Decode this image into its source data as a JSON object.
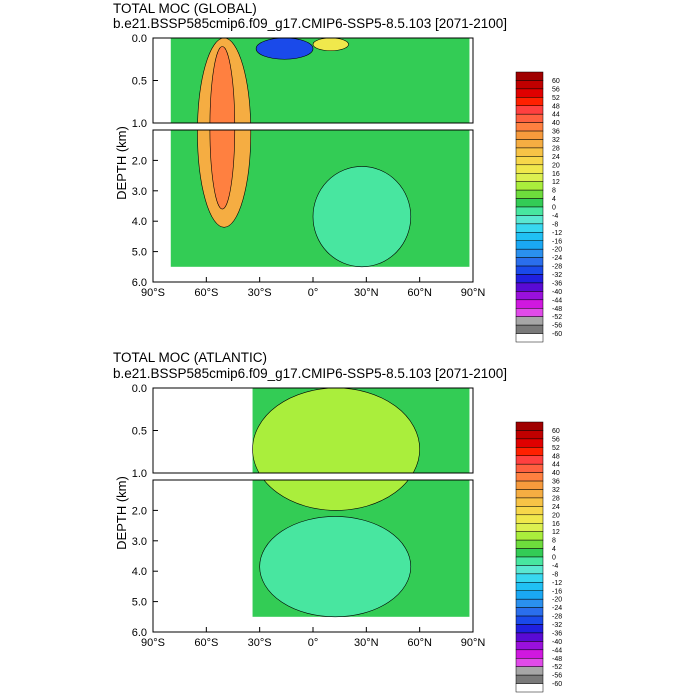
{
  "panels": [
    {
      "title": "TOTAL MOC (GLOBAL)",
      "subtitle": "b.e21.BSSP585cmip6.f09_g17.CMIP6-SSP5-8.5.103 [2071-2100]"
    },
    {
      "title": "TOTAL MOC (ATLANTIC)",
      "subtitle": "b.e21.BSSP585cmip6.f09_g17.CMIP6-SSP5-8.5.103 [2071-2100]"
    }
  ],
  "chart_data": [
    {
      "type": "heatmap",
      "title": "TOTAL MOC (GLOBAL)",
      "subtitle": "b.e21.BSSP585cmip6.f09_g17.CMIP6-SSP5-8.5.103 [2071-2100]",
      "ylabel": "DEPTH (km)",
      "xlim": [
        -90,
        90
      ],
      "ylim": [
        6.0,
        0.0
      ],
      "upper_yticks": [
        "0.0",
        "0.5",
        "1.0"
      ],
      "lower_yticks": [
        "2.0",
        "3.0",
        "4.0",
        "5.0",
        "6.0"
      ],
      "xticks": [
        "90°S",
        "60°S",
        "30°S",
        "0°",
        "30°N",
        "60°N",
        "90°N"
      ],
      "ocean_lat_range": [
        -80,
        88
      ],
      "max_depth_km": 5.5,
      "features": [
        {
          "name": "southern-ocean-cell",
          "lat": [
            -65,
            -35
          ],
          "depth": [
            0.0,
            4.2
          ],
          "value": 28
        },
        {
          "name": "southern-ocean-core",
          "lat": [
            -58,
            -44
          ],
          "depth": [
            0.1,
            3.6
          ],
          "value": 36
        },
        {
          "name": "tropical-negative-cell",
          "lat": [
            -32,
            0
          ],
          "depth": [
            0.0,
            0.25
          ],
          "value": -32
        },
        {
          "name": "tropical-positive-cell",
          "lat": [
            0,
            20
          ],
          "depth": [
            0.0,
            0.15
          ],
          "value": 16
        },
        {
          "name": "abyssal-negative-cell",
          "lat": [
            0,
            55
          ],
          "depth": [
            2.2,
            5.5
          ],
          "value": -4
        }
      ],
      "colorbar": {
        "labels": [
          60,
          56,
          52,
          48,
          44,
          40,
          36,
          32,
          28,
          24,
          20,
          16,
          12,
          8,
          4,
          0,
          -4,
          -8,
          -12,
          -16,
          -20,
          -24,
          -28,
          -32,
          -36,
          -40,
          -44,
          -48,
          -52,
          -56,
          -60
        ],
        "colors": [
          "#a00000",
          "#c00000",
          "#e00000",
          "#ff2000",
          "#ff4040",
          "#ff6040",
          "#ff8040",
          "#f79a3c",
          "#f5ad42",
          "#f7c346",
          "#f7d74a",
          "#f0e84c",
          "#dcf050",
          "#aaee3c",
          "#6edc3c",
          "#33cc55",
          "#48e6a0",
          "#5ae8d2",
          "#38d8f0",
          "#20c0f4",
          "#1aa8f4",
          "#2a90ee",
          "#2a6eec",
          "#1a4aea",
          "#2020e0",
          "#5a0ad4",
          "#9a10dc",
          "#d018e0",
          "#e04ae8",
          "#a6a6a6",
          "#7a7a7a",
          "#ffffff"
        ]
      }
    },
    {
      "type": "heatmap",
      "title": "TOTAL MOC (ATLANTIC)",
      "subtitle": "b.e21.BSSP585cmip6.f09_g17.CMIP6-SSP5-8.5.103 [2071-2100]",
      "ylabel": "DEPTH (km)",
      "xlim": [
        -90,
        90
      ],
      "ylim": [
        6.0,
        0.0
      ],
      "upper_yticks": [
        "0.0",
        "0.5",
        "1.0"
      ],
      "lower_yticks": [
        "2.0",
        "3.0",
        "4.0",
        "5.0",
        "6.0"
      ],
      "xticks": [
        "90°S",
        "60°S",
        "30°S",
        "0°",
        "30°N",
        "60°N",
        "90°N"
      ],
      "ocean_lat_range": [
        -34,
        88
      ],
      "max_depth_km": 5.5,
      "features": [
        {
          "name": "upper-overturning-cell",
          "lat": [
            -34,
            60
          ],
          "depth": [
            0.0,
            2.0
          ],
          "value": 8
        },
        {
          "name": "abyssal-negative-cell",
          "lat": [
            -30,
            55
          ],
          "depth": [
            2.2,
            5.5
          ],
          "value": -4
        }
      ],
      "colorbar": {
        "labels": [
          60,
          56,
          52,
          48,
          44,
          40,
          36,
          32,
          28,
          24,
          20,
          16,
          12,
          8,
          4,
          0,
          -4,
          -8,
          -12,
          -16,
          -20,
          -24,
          -28,
          -32,
          -36,
          -40,
          -44,
          -48,
          -52,
          -56,
          -60
        ],
        "colors": [
          "#a00000",
          "#c00000",
          "#e00000",
          "#ff2000",
          "#ff4040",
          "#ff6040",
          "#ff8040",
          "#f79a3c",
          "#f5ad42",
          "#f7c346",
          "#f7d74a",
          "#f0e84c",
          "#dcf050",
          "#aaee3c",
          "#6edc3c",
          "#33cc55",
          "#48e6a0",
          "#5ae8d2",
          "#38d8f0",
          "#20c0f4",
          "#1aa8f4",
          "#2a90ee",
          "#2a6eec",
          "#1a4aea",
          "#2020e0",
          "#5a0ad4",
          "#9a10dc",
          "#d018e0",
          "#e04ae8",
          "#a6a6a6",
          "#7a7a7a",
          "#ffffff"
        ]
      }
    }
  ]
}
